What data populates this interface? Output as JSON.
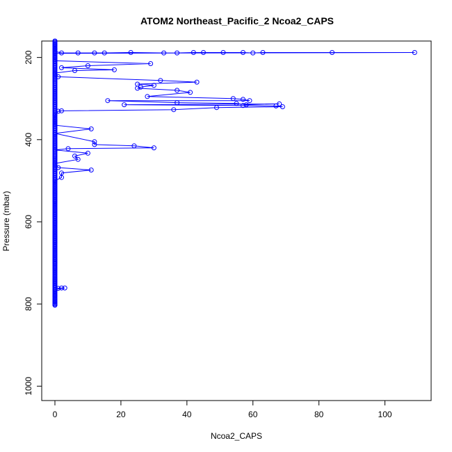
{
  "chart_data": {
    "type": "line",
    "title": "ATOM2 Northeast_Pacific_2 Ncoa2_CAPS",
    "xlabel": "Ncoa2_CAPS",
    "ylabel": "Pressure (mbar)",
    "xlim": [
      -4,
      114
    ],
    "ylim": [
      1035,
      160
    ],
    "y_reversed": true,
    "x_ticks": [
      0,
      20,
      40,
      60,
      80,
      100
    ],
    "y_ticks": [
      200,
      400,
      600,
      800,
      1000
    ],
    "grid": false,
    "legend": "none",
    "series_color": "#0000ff",
    "markers": "open-circle",
    "points": [
      [
        0,
        160
      ],
      [
        0,
        170
      ],
      [
        0,
        180
      ],
      [
        0,
        185
      ],
      [
        2,
        189
      ],
      [
        7,
        189
      ],
      [
        12,
        189
      ],
      [
        15,
        189
      ],
      [
        23,
        188
      ],
      [
        33,
        189
      ],
      [
        37,
        189
      ],
      [
        42,
        188
      ],
      [
        45,
        188
      ],
      [
        51,
        188
      ],
      [
        57,
        188
      ],
      [
        60,
        189
      ],
      [
        63,
        188
      ],
      [
        84,
        188
      ],
      [
        109,
        188
      ],
      [
        0,
        190
      ],
      [
        0,
        200
      ],
      [
        0,
        208
      ],
      [
        29,
        215
      ],
      [
        10,
        220
      ],
      [
        2,
        225
      ],
      [
        18,
        230
      ],
      [
        6,
        232
      ],
      [
        0,
        238
      ],
      [
        1,
        247
      ],
      [
        32,
        256
      ],
      [
        43,
        260
      ],
      [
        25,
        265
      ],
      [
        30,
        268
      ],
      [
        26,
        272
      ],
      [
        25,
        275
      ],
      [
        37,
        280
      ],
      [
        41,
        285
      ],
      [
        28,
        295
      ],
      [
        54,
        300
      ],
      [
        57,
        302
      ],
      [
        59,
        305
      ],
      [
        16,
        305
      ],
      [
        37,
        310
      ],
      [
        55,
        312
      ],
      [
        58,
        315
      ],
      [
        68,
        313
      ],
      [
        21,
        315
      ],
      [
        57,
        317
      ],
      [
        67,
        318
      ],
      [
        69,
        320
      ],
      [
        49,
        322
      ],
      [
        36,
        327
      ],
      [
        2,
        330
      ],
      [
        1,
        331
      ],
      [
        0,
        340
      ],
      [
        0,
        355
      ],
      [
        0,
        365
      ],
      [
        11,
        374
      ],
      [
        0,
        385
      ],
      [
        12,
        405
      ],
      [
        12,
        412
      ],
      [
        24,
        415
      ],
      [
        30,
        420
      ],
      [
        4,
        422
      ],
      [
        0,
        425
      ],
      [
        10,
        433
      ],
      [
        6,
        440
      ],
      [
        7,
        448
      ],
      [
        0,
        458
      ],
      [
        1,
        468
      ],
      [
        11,
        474
      ],
      [
        2,
        481
      ],
      [
        2,
        492
      ],
      [
        0,
        500
      ],
      [
        0,
        550
      ],
      [
        0,
        600
      ],
      [
        0,
        650
      ],
      [
        0,
        700
      ],
      [
        0,
        740
      ],
      [
        0,
        757
      ],
      [
        1,
        762
      ],
      [
        2,
        761
      ],
      [
        3,
        761
      ],
      [
        0,
        765
      ],
      [
        0,
        780
      ],
      [
        0,
        795
      ],
      [
        0,
        800
      ],
      [
        0,
        803
      ]
    ]
  }
}
